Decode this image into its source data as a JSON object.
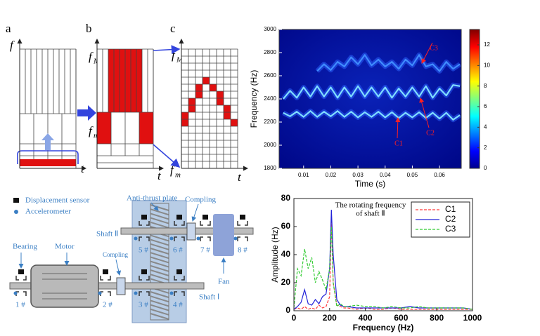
{
  "figure_top": {
    "panel_labels": [
      "a",
      "b",
      "c"
    ],
    "f": "f",
    "t": "t",
    "sub_M": "M",
    "sub_m": "m"
  },
  "schematic": {
    "legend": [
      "Displacement sensor",
      "Accelerometer"
    ],
    "anti_thrust_plate": "Anti-thrust plate",
    "coupling": "Compling",
    "shaft_2": "Shaft Ⅱ",
    "shaft_1": "Shaft Ⅰ",
    "bearing": "Bearing",
    "motor": "Motor",
    "fan": "Fan",
    "sensor_numbers": [
      "1 #",
      "2 #",
      "3 #",
      "4 #",
      "5 #",
      "6 #",
      "7 #",
      "8 #"
    ]
  },
  "chart_data": [
    {
      "type": "spectrogram",
      "xlabel": "Time (s)",
      "ylabel": "Frequency (Hz)",
      "colormap": "jet",
      "xlim": [
        0.001,
        0.068
      ],
      "xticks": [
        0.01,
        0.02,
        0.03,
        0.04,
        0.05,
        0.06
      ],
      "ylim": [
        1800,
        3000
      ],
      "yticks": [
        1800,
        2000,
        2200,
        2400,
        2600,
        2800,
        3000
      ],
      "colorbar": {
        "lim": [
          0,
          13.5
        ],
        "ticks": [
          0,
          2,
          4,
          6,
          8,
          10,
          12
        ]
      },
      "x": [
        0.0025,
        0.005,
        0.0075,
        0.01,
        0.0125,
        0.015,
        0.0175,
        0.02,
        0.0225,
        0.025,
        0.0275,
        0.03,
        0.0325,
        0.035,
        0.0375,
        0.04,
        0.0425,
        0.045,
        0.0475,
        0.05,
        0.0525,
        0.055,
        0.0575,
        0.06,
        0.0625,
        0.065,
        0.0675
      ],
      "series": [
        {
          "name": "C1",
          "color": "#7fdcff",
          "values": [
            2280,
            2250,
            2290,
            2245,
            2295,
            2245,
            2290,
            2250,
            2295,
            2245,
            2290,
            2240,
            2285,
            2245,
            2290,
            2240,
            2285,
            2235,
            2280,
            2240,
            2285,
            2235,
            2280,
            2230,
            2280,
            2220,
            2260
          ]
        },
        {
          "name": "C2",
          "color": "#7fdcff",
          "values": [
            2400,
            2470,
            2410,
            2500,
            2420,
            2510,
            2420,
            2500,
            2410,
            2500,
            2420,
            2510,
            2420,
            2500,
            2420,
            2500,
            2410,
            2490,
            2420,
            2500,
            2420,
            2510,
            2410,
            2490,
            2430,
            2520,
            2510
          ]
        },
        {
          "name": "C3",
          "color": "#3f8cff",
          "values": [
            null,
            null,
            null,
            null,
            null,
            2640,
            2700,
            2650,
            2720,
            2680,
            2760,
            2700,
            2780,
            2690,
            2740,
            2680,
            2720,
            2660,
            2740,
            2690,
            2780,
            2680,
            2700,
            2640,
            2720,
            2660,
            2700
          ]
        }
      ]
    },
    {
      "type": "line",
      "xlabel": "Frequency (Hz)",
      "ylabel": "Amplitude (Hz)",
      "legend": "upper right",
      "annotation": [
        "The rotating frequency",
        "of shaft Ⅱ"
      ],
      "xlim": [
        0,
        1000
      ],
      "xticks": [
        0,
        200,
        400,
        600,
        800,
        1000
      ],
      "ylim": [
        0,
        80
      ],
      "yticks": [
        0,
        20,
        40,
        60,
        80
      ],
      "x": [
        0,
        20,
        40,
        60,
        80,
        100,
        120,
        140,
        160,
        180,
        200,
        210,
        220,
        240,
        260,
        280,
        300,
        350,
        400,
        450,
        500,
        550,
        600,
        650,
        700,
        750,
        800,
        850,
        900,
        950,
        1000
      ],
      "series": [
        {
          "name": "C1",
          "color": "#ff3b3b",
          "linestyle": "dashed",
          "values": [
            1,
            2,
            1,
            3,
            1,
            2,
            1,
            4,
            2,
            3,
            10,
            65,
            20,
            4,
            3,
            2,
            2,
            1,
            2,
            1,
            1,
            2,
            1,
            1,
            1,
            1,
            1,
            1,
            1,
            1,
            1
          ]
        },
        {
          "name": "C2",
          "color": "#2323d8",
          "linestyle": "solid",
          "values": [
            1,
            3,
            6,
            15,
            5,
            4,
            8,
            5,
            10,
            12,
            30,
            72,
            40,
            8,
            4,
            3,
            3,
            2,
            2,
            2,
            2,
            2,
            2,
            3,
            2,
            2,
            2,
            2,
            2,
            2,
            1
          ]
        },
        {
          "name": "C3",
          "color": "#33cc33",
          "linestyle": "dashed",
          "values": [
            2,
            30,
            25,
            44,
            30,
            38,
            20,
            28,
            22,
            15,
            30,
            60,
            20,
            3,
            5,
            3,
            3,
            4,
            3,
            3,
            2,
            3,
            2,
            2,
            3,
            2,
            2,
            2,
            2,
            2,
            1
          ]
        }
      ]
    }
  ]
}
